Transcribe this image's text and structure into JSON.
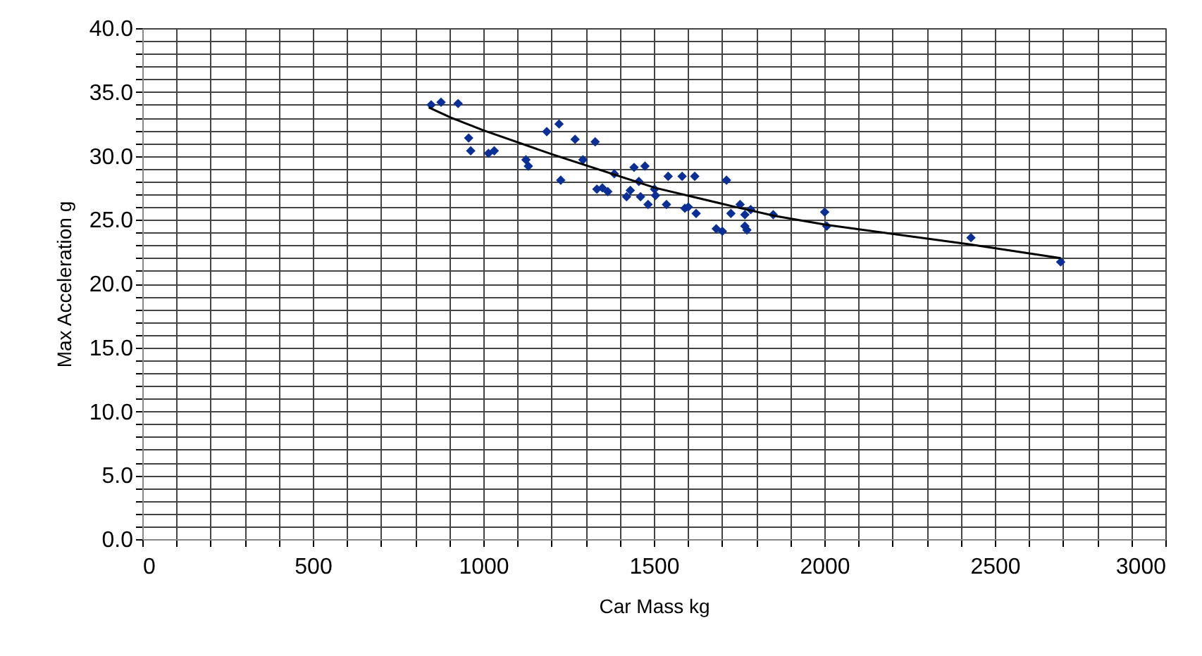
{
  "chart_data": {
    "type": "scatter",
    "xlabel": "Car Mass kg",
    "ylabel": "Max Acceleration g",
    "xlim": [
      0,
      3000
    ],
    "ylim": [
      0,
      40
    ],
    "xticks": [
      0,
      {
        "value": 100,
        "label": null
      },
      {
        "value": 200,
        "label": null
      },
      {
        "value": 300,
        "label": null
      },
      {
        "value": 400,
        "label": null
      },
      500,
      {
        "value": 600,
        "label": null
      },
      {
        "value": 700,
        "label": null
      },
      {
        "value": 800,
        "label": null
      },
      {
        "value": 900,
        "label": null
      },
      1000,
      {
        "value": 1100,
        "label": null
      },
      {
        "value": 1200,
        "label": null
      },
      {
        "value": 1300,
        "label": null
      },
      {
        "value": 1400,
        "label": null
      },
      1500,
      {
        "value": 1600,
        "label": null
      },
      {
        "value": 1700,
        "label": null
      },
      {
        "value": 1800,
        "label": null
      },
      {
        "value": 1900,
        "label": null
      },
      2000,
      {
        "value": 2100,
        "label": null
      },
      {
        "value": 2200,
        "label": null
      },
      {
        "value": 2300,
        "label": null
      },
      {
        "value": 2400,
        "label": null
      },
      2500,
      {
        "value": 2600,
        "label": null
      },
      {
        "value": 2700,
        "label": null
      },
      {
        "value": 2800,
        "label": null
      },
      {
        "value": 2900,
        "label": null
      },
      3000
    ],
    "yticks": [
      {
        "value": 0,
        "label": "0.0"
      },
      {
        "value": 1,
        "label": null
      },
      {
        "value": 2,
        "label": null
      },
      {
        "value": 3,
        "label": null
      },
      {
        "value": 4,
        "label": null
      },
      {
        "value": 5,
        "label": "5.0"
      },
      {
        "value": 6,
        "label": null
      },
      {
        "value": 7,
        "label": null
      },
      {
        "value": 8,
        "label": null
      },
      {
        "value": 9,
        "label": null
      },
      {
        "value": 10,
        "label": "10.0"
      },
      {
        "value": 11,
        "label": null
      },
      {
        "value": 12,
        "label": null
      },
      {
        "value": 13,
        "label": null
      },
      {
        "value": 14,
        "label": null
      },
      {
        "value": 15,
        "label": "15.0"
      },
      {
        "value": 16,
        "label": null
      },
      {
        "value": 17,
        "label": null
      },
      {
        "value": 18,
        "label": null
      },
      {
        "value": 19,
        "label": null
      },
      {
        "value": 20,
        "label": "20.0"
      },
      {
        "value": 21,
        "label": null
      },
      {
        "value": 22,
        "label": null
      },
      {
        "value": 23,
        "label": null
      },
      {
        "value": 24,
        "label": null
      },
      {
        "value": 25,
        "label": "25.0"
      },
      {
        "value": 26,
        "label": null
      },
      {
        "value": 27,
        "label": null
      },
      {
        "value": 28,
        "label": null
      },
      {
        "value": 29,
        "label": null
      },
      {
        "value": 30,
        "label": "30.0"
      },
      {
        "value": 31,
        "label": null
      },
      {
        "value": 32,
        "label": null
      },
      {
        "value": 33,
        "label": null
      },
      {
        "value": 34,
        "label": null
      },
      {
        "value": 35,
        "label": "35.0"
      },
      {
        "value": 36,
        "label": null
      },
      {
        "value": 37,
        "label": null
      },
      {
        "value": 38,
        "label": null
      },
      {
        "value": 39,
        "label": null
      },
      {
        "value": 40,
        "label": "40.0"
      }
    ],
    "grid": true,
    "series": [
      {
        "color": "#0a2f96",
        "marker": "diamond",
        "x": [
          847,
          876,
          926,
          957,
          963,
          1015,
          1032,
          1125,
          1132,
          1186,
          1222,
          1227,
          1269,
          1292,
          1328,
          1333,
          1349,
          1365,
          1384,
          1420,
          1431,
          1442,
          1456,
          1461,
          1474,
          1483,
          1502,
          1505,
          1537,
          1542,
          1583,
          1591,
          1601,
          1620,
          1624,
          1683,
          1701,
          1713,
          1726,
          1753,
          1767,
          1767,
          1773,
          1784,
          1850,
          2001,
          2007,
          2430,
          2693
        ],
        "values": [
          34.0,
          34.2,
          34.1,
          31.4,
          30.4,
          30.2,
          30.4,
          29.7,
          29.2,
          31.9,
          32.5,
          28.1,
          31.3,
          29.7,
          31.1,
          27.4,
          27.5,
          27.2,
          28.6,
          26.8,
          27.3,
          29.1,
          28.0,
          26.8,
          29.2,
          26.2,
          27.4,
          26.9,
          26.2,
          28.4,
          28.4,
          25.9,
          26.0,
          28.4,
          25.5,
          24.3,
          24.1,
          28.1,
          25.5,
          26.2,
          25.4,
          24.5,
          24.2,
          25.8,
          25.4,
          25.6,
          24.5,
          23.6,
          21.7
        ]
      },
      {
        "type": "line",
        "color": "#000000",
        "marker": "none",
        "line_style": "solid",
        "x": [
          840,
          905,
          1000,
          1204,
          1504,
          1740,
          1855,
          2007,
          2420,
          2693
        ],
        "values": [
          33.8,
          33.0,
          32.0,
          30.1,
          27.5,
          26.0,
          25.3,
          24.6,
          23.1,
          22.0
        ]
      }
    ]
  }
}
